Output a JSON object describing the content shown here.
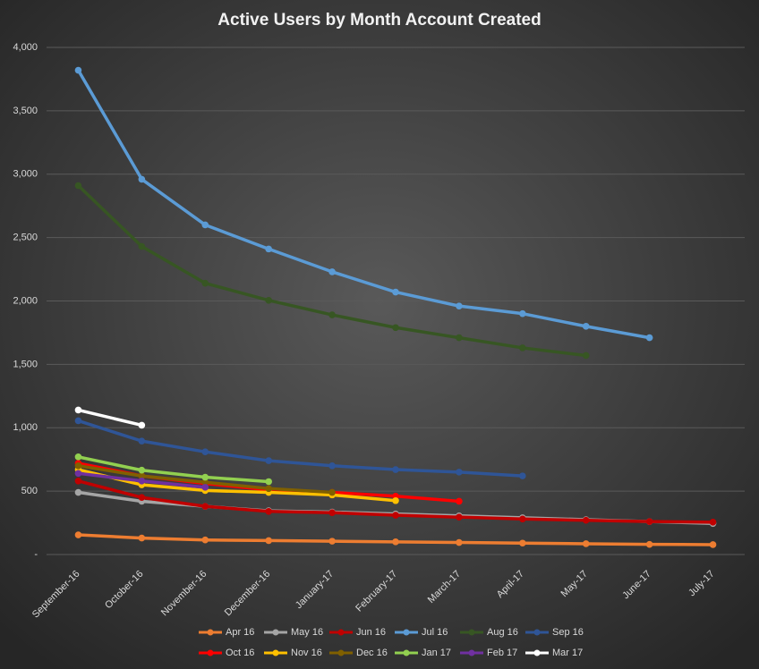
{
  "chart_data": {
    "type": "line",
    "title": "Active Users by Month Account Created",
    "categories": [
      "September-16",
      "October-16",
      "November-16",
      "December-16",
      "January-17",
      "February-17",
      "March-17",
      "April-17",
      "May-17",
      "June-17",
      "July-17"
    ],
    "ylim": [
      0,
      4000
    ],
    "yticks": [
      {
        "value": 0,
        "label": "-"
      },
      500,
      {
        "value": 1000,
        "label": "1,000"
      },
      {
        "value": 1500,
        "label": "1,500"
      },
      {
        "value": 2000,
        "label": "2,000"
      },
      {
        "value": 2500,
        "label": "2,500"
      },
      {
        "value": 3000,
        "label": "3,000"
      },
      {
        "value": 3500,
        "label": "3,500"
      },
      {
        "value": 4000,
        "label": "4,000"
      }
    ],
    "grid": true,
    "legend": "bottom",
    "series": [
      {
        "name": "Apr 16",
        "color": "#ed7d31",
        "values": [
          155,
          130,
          115,
          110,
          105,
          100,
          95,
          90,
          85,
          80,
          78
        ]
      },
      {
        "name": "May 16",
        "color": "#a5a5a5",
        "values": [
          490,
          420,
          380,
          345,
          335,
          320,
          305,
          290,
          275,
          260,
          245
        ]
      },
      {
        "name": "Jun 16",
        "color": "#c00000",
        "values": [
          580,
          450,
          380,
          340,
          330,
          310,
          295,
          280,
          270,
          260,
          255
        ]
      },
      {
        "name": "Jul 16",
        "color": "#5b9bd5",
        "values": [
          3820,
          2960,
          2600,
          2410,
          2230,
          2070,
          1960,
          1900,
          1800,
          1710,
          null
        ]
      },
      {
        "name": "Aug 16",
        "color": "#375623",
        "values": [
          2910,
          2430,
          2140,
          2005,
          1890,
          1790,
          1710,
          1630,
          1570,
          null,
          null
        ]
      },
      {
        "name": "Sep 16",
        "color": "#2f5597",
        "values": [
          1055,
          895,
          810,
          740,
          700,
          670,
          650,
          620,
          null,
          null,
          null
        ]
      },
      {
        "name": "Oct 16",
        "color": "#ff0000",
        "values": [
          720,
          620,
          560,
          510,
          490,
          460,
          420,
          null,
          null,
          null,
          null
        ]
      },
      {
        "name": "Nov 16",
        "color": "#ffc000",
        "values": [
          670,
          550,
          505,
          490,
          470,
          425,
          null,
          null,
          null,
          null,
          null
        ]
      },
      {
        "name": "Dec 16",
        "color": "#806000",
        "values": [
          700,
          620,
          570,
          520,
          490,
          null,
          null,
          null,
          null,
          null,
          null
        ]
      },
      {
        "name": "Jan 17",
        "color": "#92d050",
        "values": [
          770,
          665,
          610,
          575,
          null,
          null,
          null,
          null,
          null,
          null,
          null
        ]
      },
      {
        "name": "Feb 17",
        "color": "#7030a0",
        "values": [
          640,
          580,
          530,
          null,
          null,
          null,
          null,
          null,
          null,
          null,
          null
        ]
      },
      {
        "name": "Mar 17",
        "color": "#ffffff",
        "values": [
          1140,
          1020,
          null,
          null,
          null,
          null,
          null,
          null,
          null,
          null,
          null
        ]
      }
    ]
  }
}
